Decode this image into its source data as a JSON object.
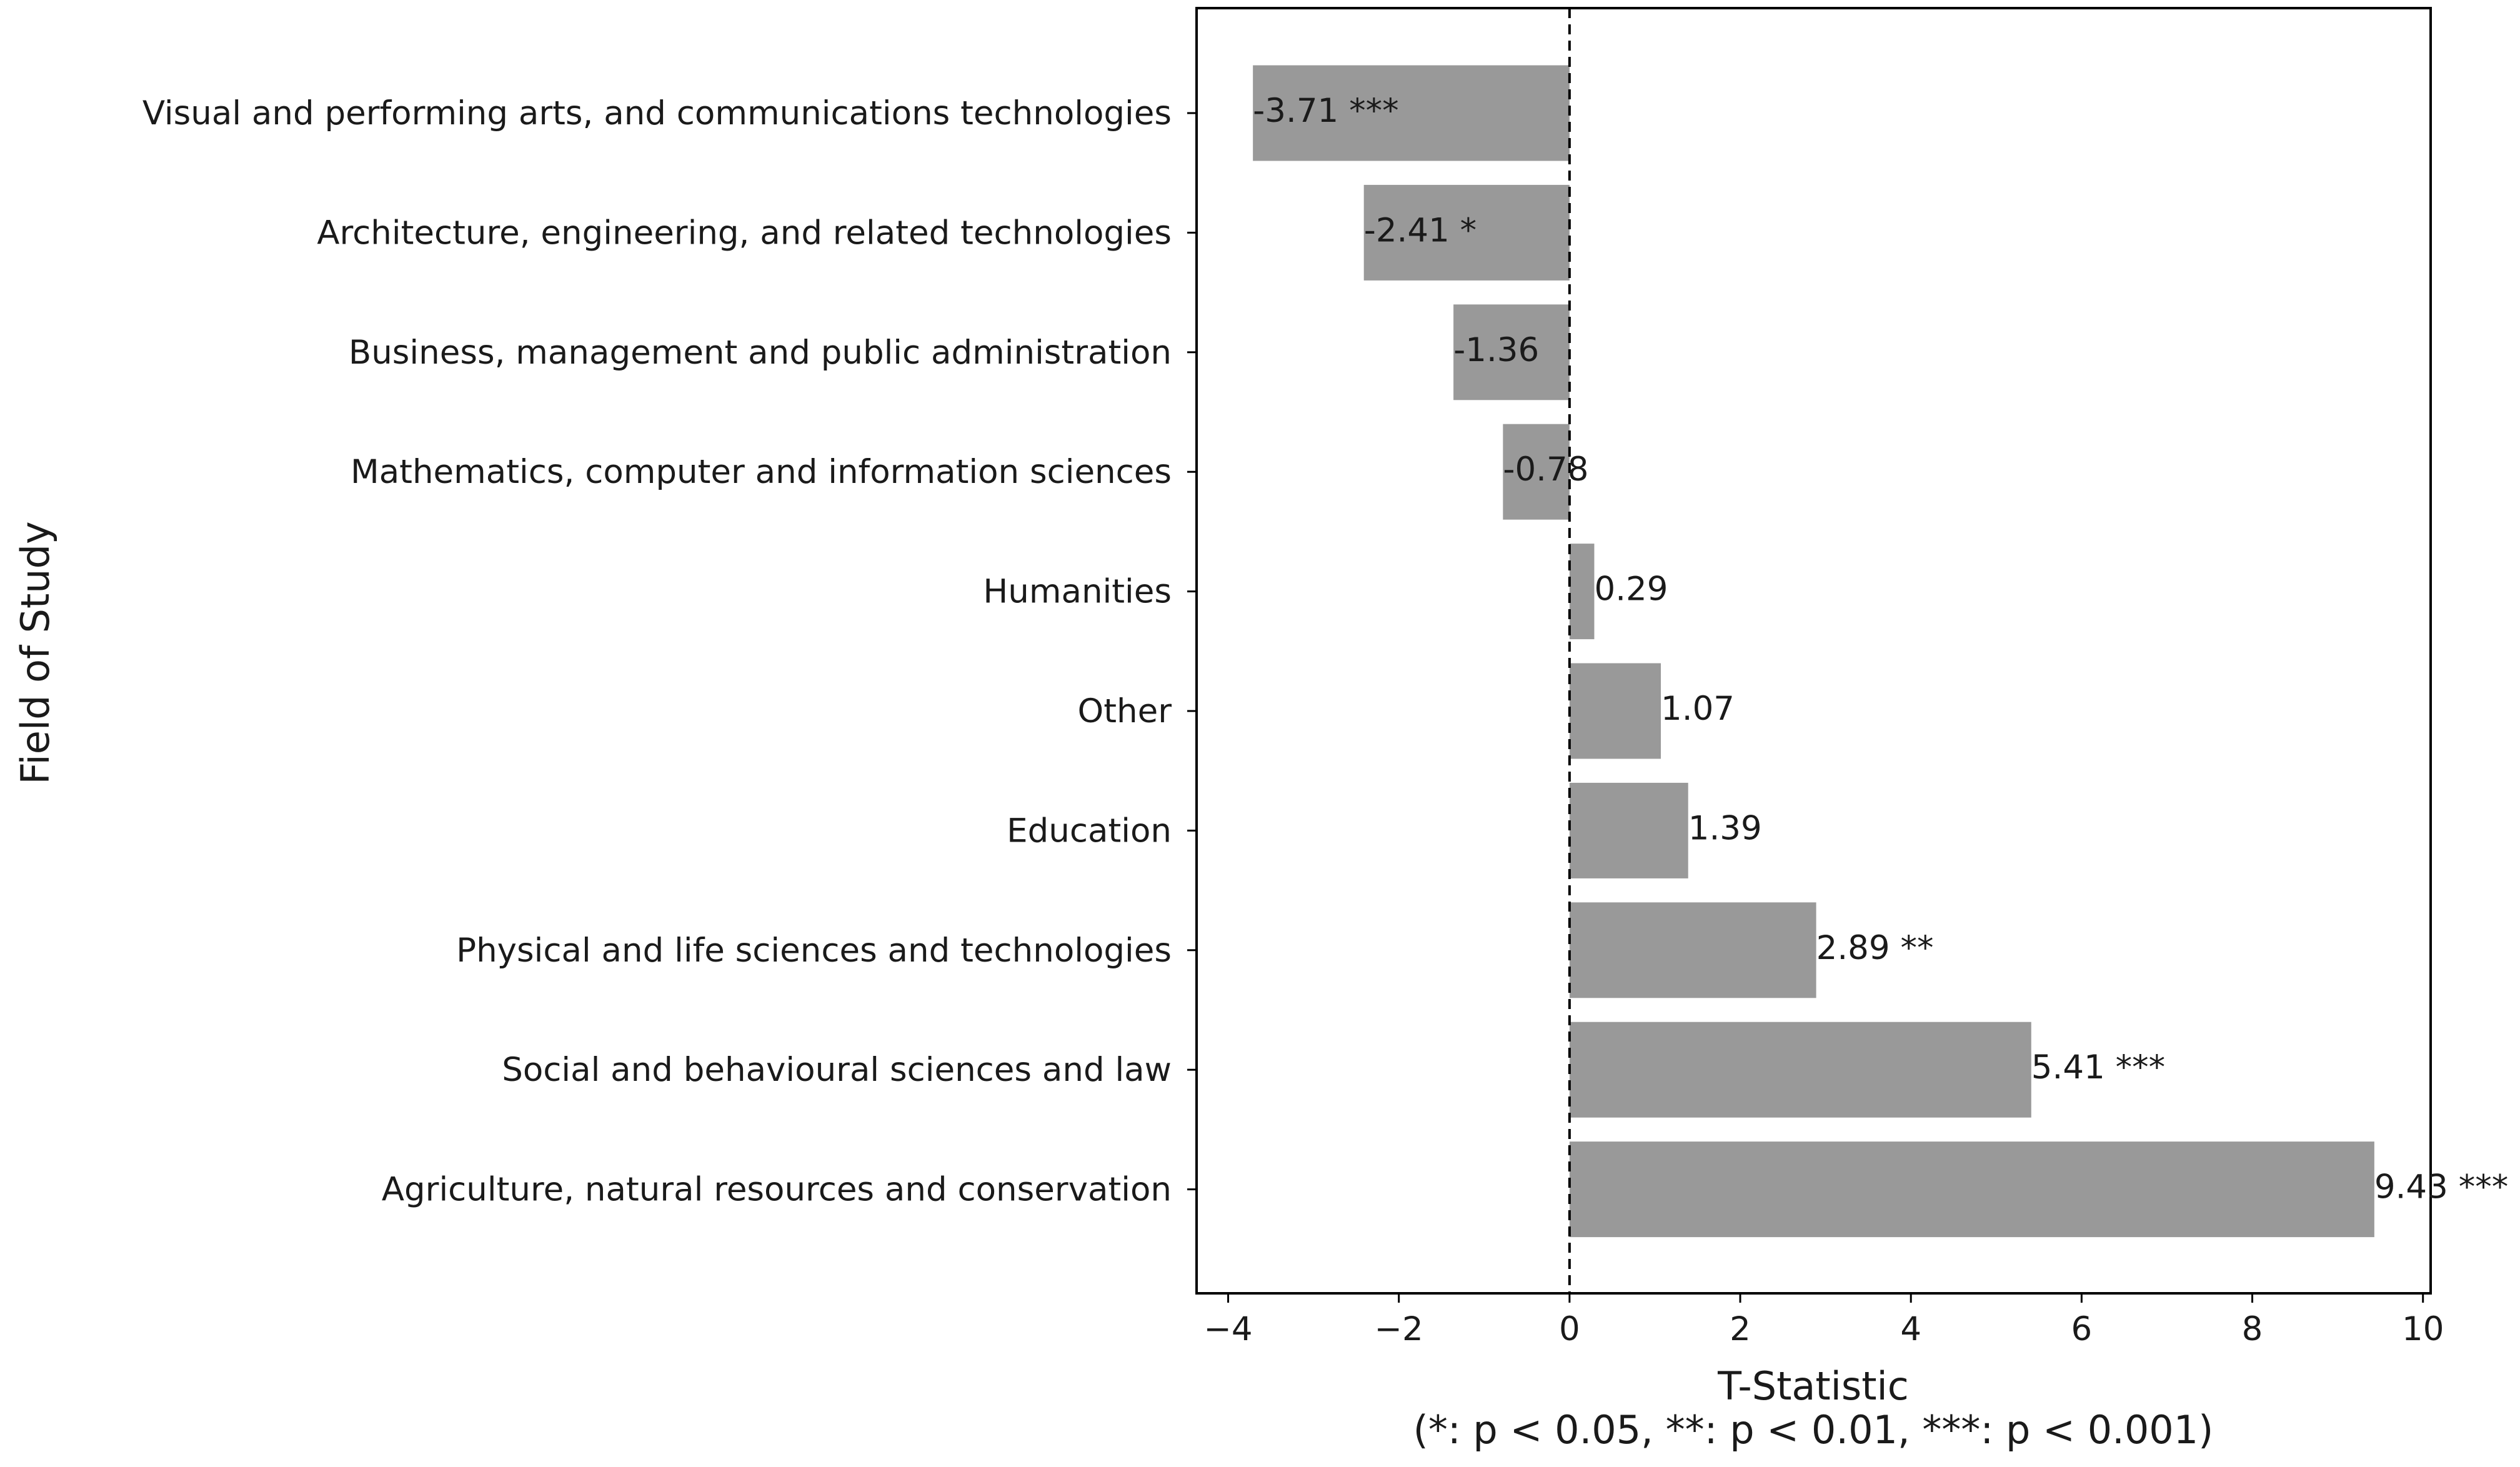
{
  "chart_data": {
    "type": "bar",
    "orientation": "horizontal",
    "categories": [
      "Visual and performing arts, and communications technologies",
      "Architecture, engineering, and related technologies",
      "Business, management and public administration",
      "Mathematics, computer and information sciences",
      "Humanities",
      "Other",
      "Education",
      "Physical and life sciences and technologies",
      "Social and behavioural sciences and law",
      "Agriculture, natural resources and conservation"
    ],
    "values": [
      -3.71,
      -2.41,
      -1.36,
      -0.78,
      0.29,
      1.07,
      1.39,
      2.89,
      5.41,
      9.43
    ],
    "bar_labels": [
      "-3.71 ***",
      "-2.41 *",
      "-1.36",
      "-0.78",
      "0.29",
      "1.07",
      "1.39",
      "2.89 **",
      "5.41 ***",
      "9.43 ***"
    ],
    "xlabel": "T-Statistic",
    "xlabel_note": "(*: p < 0.05, **: p < 0.01, ***: p < 0.001)",
    "ylabel": "Field of Study",
    "xlim": [
      -4.37,
      10.09
    ],
    "xticks": [
      -4,
      -2,
      0,
      2,
      4,
      6,
      8,
      10
    ],
    "xtick_labels": [
      "−4",
      "−2",
      "0",
      "2",
      "4",
      "6",
      "8",
      "10"
    ],
    "reference_line": 0,
    "bar_color": "#999999",
    "grid": false
  }
}
